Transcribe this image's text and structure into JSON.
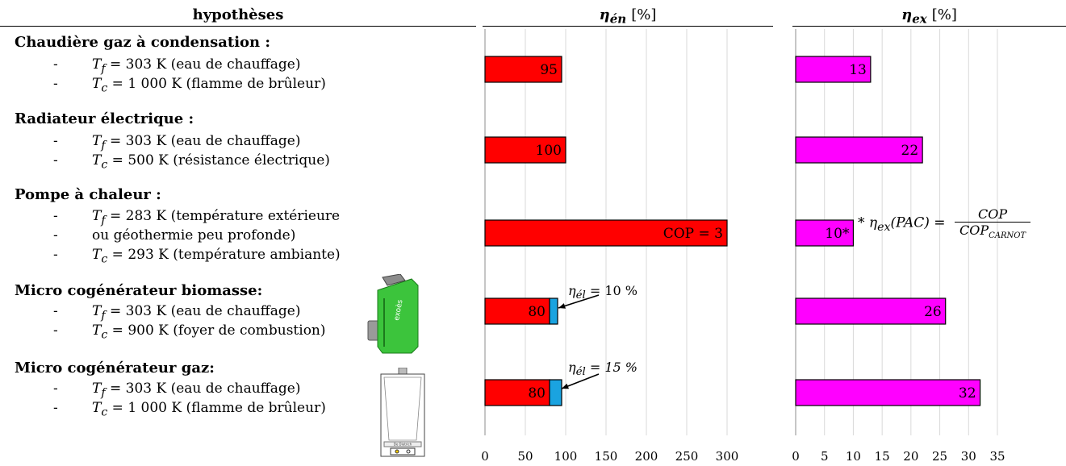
{
  "headers": {
    "hypotheses": "hypothèses",
    "eta_en_symbol": "η",
    "eta_en_sub": "én",
    "eta_ex_symbol": "η",
    "eta_ex_sub": "ex",
    "unit": "[%]"
  },
  "groups": [
    {
      "title": "Chaudière gaz à condensation :",
      "lines": [
        {
          "sym": "T",
          "sub": "f",
          "text": " = 303 K (eau de chauffage)"
        },
        {
          "sym": "T",
          "sub": "c",
          "text": " = 1 000 K (flamme de brûleur)"
        }
      ]
    },
    {
      "title": "Radiateur électrique :",
      "lines": [
        {
          "sym": "T",
          "sub": "f",
          "text": " = 303 K (eau de chauffage)"
        },
        {
          "sym": "T",
          "sub": "c",
          "text": " = 500 K (résistance électrique)"
        }
      ]
    },
    {
      "title": "Pompe à chaleur :",
      "lines": [
        {
          "sym": "T",
          "sub": "f",
          "text": " = 283 K (température extérieure"
        },
        {
          "sym": "",
          "sub": "",
          "text": "ou géothermie peu profonde)"
        },
        {
          "sym": "T",
          "sub": "c",
          "text": " = 293 K (température ambiante)"
        }
      ]
    },
    {
      "title": "Micro cogénérateur biomasse:",
      "lines": [
        {
          "sym": "T",
          "sub": "f",
          "text": " = 303 K (eau de chauffage)"
        },
        {
          "sym": "T",
          "sub": "c",
          "text": " = 900 K (foyer de combustion)"
        }
      ]
    },
    {
      "title": "Micro cogénérateur gaz:",
      "lines": [
        {
          "sym": "T",
          "sub": "f",
          "text": " = 303 K (eau de chauffage)"
        },
        {
          "sym": "T",
          "sub": "c",
          "text": " = 1 000 K (flamme de brûleur)"
        }
      ]
    }
  ],
  "dash": "-",
  "annotations": {
    "eta_el_10": "η",
    "eta_el_10_sub": "él",
    "eta_el_10_text": " = 10 %",
    "eta_el_15": "η",
    "eta_el_15_sub": "él",
    "eta_el_15_text": " = 15 %",
    "formula_prefix": "* η",
    "formula_sub": "ex",
    "formula_mid": "(PAC) =",
    "formula_num": "COP",
    "formula_den": "COP",
    "formula_den_sub": "CARNOT"
  },
  "icons": {
    "biomass_boiler": "green-pellet-boiler-icon",
    "gas_boiler": "white-wall-boiler-icon",
    "biomass_brand": "exoès",
    "gas_brand": "De Dietrich"
  },
  "colors": {
    "red": "#ff0000",
    "blue": "#1aa3e0",
    "magenta": "#ff00ff"
  },
  "chart_data": [
    {
      "type": "bar",
      "orientation": "horizontal",
      "categories": [
        "Chaudière gaz à condensation",
        "Radiateur électrique",
        "Pompe à chaleur",
        "Micro cogénérateur biomasse",
        "Micro cogénérateur gaz"
      ],
      "series": [
        {
          "values": [
            95,
            100,
            300,
            80,
            80
          ],
          "color": "#ff0000"
        },
        {
          "values": [
            0,
            0,
            0,
            10,
            15
          ],
          "color": "#1aa3e0"
        }
      ],
      "bar_labels": [
        "95",
        "100",
        "COP = 3",
        "80",
        "80"
      ],
      "xlim": [
        0,
        300
      ],
      "xticks": [
        0,
        50,
        100,
        150,
        200,
        250,
        300
      ],
      "grid": true
    },
    {
      "type": "bar",
      "orientation": "horizontal",
      "categories": [
        "Chaudière gaz à condensation",
        "Radiateur électrique",
        "Pompe à chaleur",
        "Micro cogénérateur biomasse",
        "Micro cogénérateur gaz"
      ],
      "values": [
        13,
        22,
        10,
        26,
        32
      ],
      "bar_labels": [
        "13",
        "22",
        "10*",
        "26",
        "32"
      ],
      "color": "#ff00ff",
      "xlim": [
        0,
        35
      ],
      "xticks": [
        0,
        5,
        10,
        15,
        20,
        25,
        30,
        35
      ],
      "grid": true
    }
  ]
}
